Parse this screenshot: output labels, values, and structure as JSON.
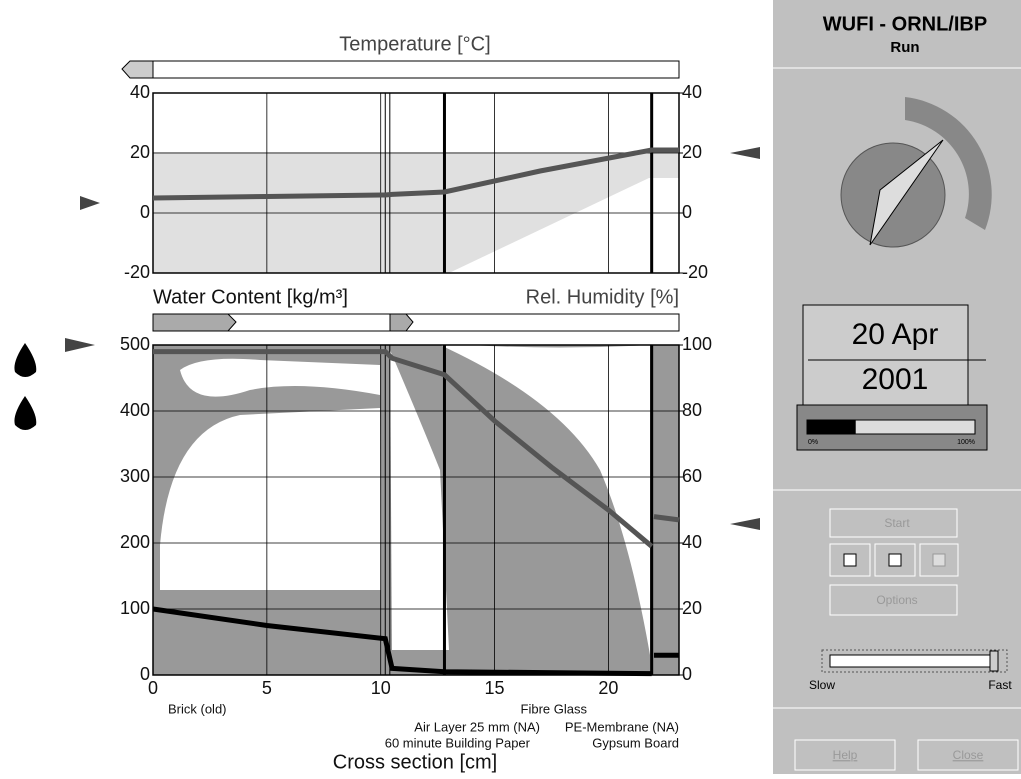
{
  "chart_data": [
    {
      "type": "line",
      "title": "Temperature [°C]",
      "xlim": [
        0,
        23.1
      ],
      "ylim": [
        -20,
        40
      ],
      "yticks": [
        -20,
        0,
        20,
        40
      ],
      "y2lim": [
        -20,
        40
      ],
      "y2ticks": [
        -20,
        0,
        20,
        40
      ],
      "series": [
        {
          "color": "#555555",
          "x": [
            0,
            5,
            10.2,
            10.5,
            12.8,
            17,
            21.9,
            23.1
          ],
          "values": [
            5,
            5.5,
            6,
            6.2,
            7,
            14,
            21,
            21
          ]
        }
      ]
    },
    {
      "type": "line",
      "title": "Water Content [kg/m³]",
      "y2label": "Rel. Humidity [%]",
      "xlabel": "Cross section [cm]",
      "xlim": [
        0,
        23.1
      ],
      "xticks": [
        0,
        5,
        10,
        15,
        20
      ],
      "ylim": [
        0,
        500
      ],
      "yticks": [
        0,
        100,
        200,
        300,
        400,
        500
      ],
      "y2lim": [
        0,
        100
      ],
      "y2ticks": [
        0,
        20,
        40,
        60,
        80,
        100
      ],
      "layer_boundaries": [
        10.2,
        10.4,
        12.8,
        21.9
      ],
      "layer_labels": [
        "Brick (old)",
        "Air Layer 25 mm (NA)",
        "60 minute Building Paper",
        "Fibre Glass",
        "PE-Membrane (NA)",
        "Gypsum Board"
      ],
      "series": [
        {
          "color": "#000000",
          "x": [
            0,
            5,
            10.2,
            10.5,
            12.8,
            21.9,
            21.95,
            22,
            23.1
          ],
          "values": [
            100,
            75,
            55,
            10,
            5,
            2,
            null,
            30,
            30
          ]
        },
        {
          "color": "#555555",
          "axis": "y2",
          "x": [
            0,
            5,
            10.2,
            10.5,
            12.8,
            15,
            17.5,
            20,
            21.9,
            21.95,
            22,
            23.1
          ],
          "values": [
            98,
            98,
            98,
            96,
            91,
            77,
            63,
            50,
            39,
            null,
            48,
            47
          ]
        }
      ]
    }
  ],
  "panel": {
    "title": "WUFI - ORNL/IBP",
    "subtitle": "Run",
    "date_day": "20 Apr",
    "date_year": "2001",
    "progress": 29,
    "progress_min": "0%",
    "progress_max": "100%",
    "buttons": [
      "Start",
      "Options",
      "Help",
      "Close"
    ],
    "slider_min": "Slow",
    "slider_max": "Fast"
  }
}
